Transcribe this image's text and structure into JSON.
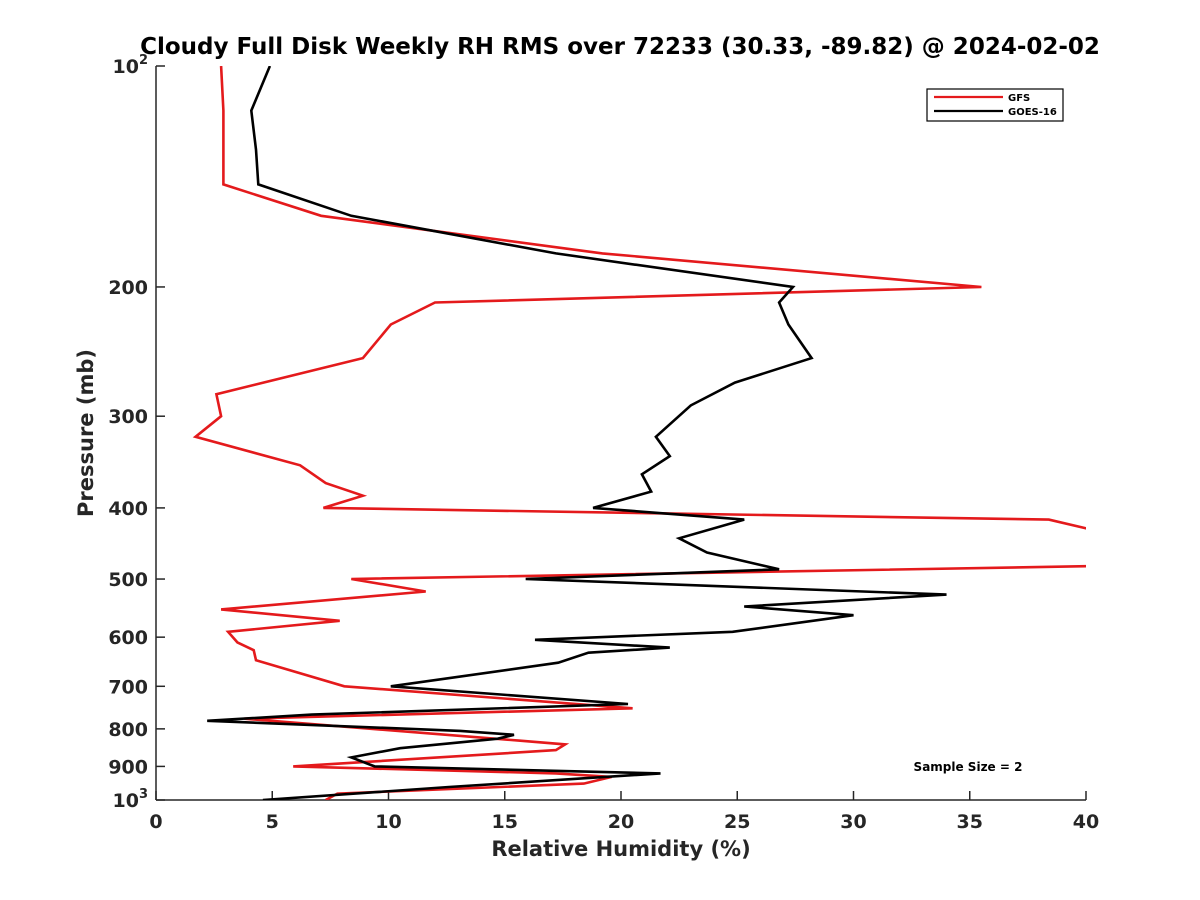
{
  "chart_data": {
    "type": "line",
    "title": "Cloudy Full Disk Weekly RH RMS over 72233 (30.33, -89.82) @ 2024-02-02",
    "xlabel": "Relative Humidity (%)",
    "ylabel": "Pressure (mb)",
    "xlim": [
      0,
      40
    ],
    "ylim": [
      100,
      1000
    ],
    "yscale": "log",
    "y_reversed": true,
    "xticks": [
      0,
      5,
      10,
      15,
      20,
      25,
      30,
      35,
      40
    ],
    "yticks": [
      {
        "value": 100,
        "base": "10",
        "exp": "2"
      },
      {
        "value": 200,
        "label": "200"
      },
      {
        "value": 300,
        "label": "300"
      },
      {
        "value": 400,
        "label": "400"
      },
      {
        "value": 500,
        "label": "500"
      },
      {
        "value": 600,
        "label": "600"
      },
      {
        "value": 700,
        "label": "700"
      },
      {
        "value": 800,
        "label": "800"
      },
      {
        "value": 900,
        "label": "900"
      },
      {
        "value": 1000,
        "base": "10",
        "exp": "3"
      }
    ],
    "legend_position": "top-right",
    "annotation": "Sample Size = 2",
    "series": [
      {
        "name": "GFS",
        "color": "#e41a1c",
        "points": [
          [
            2.8,
            100
          ],
          [
            2.9,
            115
          ],
          [
            2.9,
            130
          ],
          [
            2.9,
            145
          ],
          [
            7.1,
            160
          ],
          [
            19.2,
            180
          ],
          [
            35.5,
            200
          ],
          [
            12.0,
            210
          ],
          [
            10.1,
            225
          ],
          [
            8.9,
            250
          ],
          [
            2.6,
            280
          ],
          [
            2.8,
            300
          ],
          [
            1.7,
            320
          ],
          [
            6.2,
            350
          ],
          [
            7.3,
            370
          ],
          [
            8.9,
            385
          ],
          [
            7.2,
            400
          ],
          [
            38.4,
            415
          ],
          [
            40.5,
            430
          ],
          [
            40.5,
            480
          ],
          [
            8.4,
            500
          ],
          [
            11.6,
            520
          ],
          [
            2.8,
            550
          ],
          [
            7.9,
            570
          ],
          [
            3.1,
            590
          ],
          [
            3.5,
            610
          ],
          [
            4.2,
            625
          ],
          [
            4.3,
            645
          ],
          [
            8.1,
            700
          ],
          [
            20.5,
            750
          ],
          [
            3.8,
            775
          ],
          [
            15.6,
            830
          ],
          [
            17.6,
            840
          ],
          [
            17.2,
            855
          ],
          [
            5.9,
            900
          ],
          [
            17.2,
            920
          ],
          [
            19.6,
            930
          ],
          [
            18.4,
            950
          ],
          [
            7.8,
            980
          ],
          [
            7.3,
            1000
          ]
        ]
      },
      {
        "name": "GOES-16",
        "color": "#000000",
        "points": [
          [
            4.9,
            100
          ],
          [
            4.1,
            115
          ],
          [
            4.3,
            130
          ],
          [
            4.4,
            145
          ],
          [
            8.4,
            160
          ],
          [
            17.2,
            180
          ],
          [
            27.4,
            200
          ],
          [
            26.8,
            210
          ],
          [
            27.2,
            225
          ],
          [
            28.2,
            250
          ],
          [
            24.9,
            270
          ],
          [
            23.0,
            290
          ],
          [
            21.5,
            320
          ],
          [
            22.1,
            340
          ],
          [
            20.9,
            360
          ],
          [
            21.3,
            380
          ],
          [
            18.8,
            400
          ],
          [
            25.3,
            415
          ],
          [
            22.5,
            440
          ],
          [
            23.7,
            460
          ],
          [
            26.8,
            485
          ],
          [
            15.9,
            500
          ],
          [
            34.0,
            525
          ],
          [
            25.3,
            545
          ],
          [
            30.0,
            560
          ],
          [
            24.8,
            590
          ],
          [
            16.3,
            605
          ],
          [
            22.1,
            620
          ],
          [
            18.6,
            630
          ],
          [
            17.3,
            650
          ],
          [
            10.1,
            700
          ],
          [
            20.3,
            740
          ],
          [
            6.7,
            765
          ],
          [
            2.2,
            780
          ],
          [
            13.1,
            805
          ],
          [
            15.4,
            815
          ],
          [
            14.7,
            825
          ],
          [
            10.5,
            850
          ],
          [
            8.4,
            875
          ],
          [
            9.4,
            900
          ],
          [
            21.7,
            920
          ],
          [
            12.6,
            960
          ],
          [
            4.6,
            1000
          ]
        ]
      }
    ]
  }
}
